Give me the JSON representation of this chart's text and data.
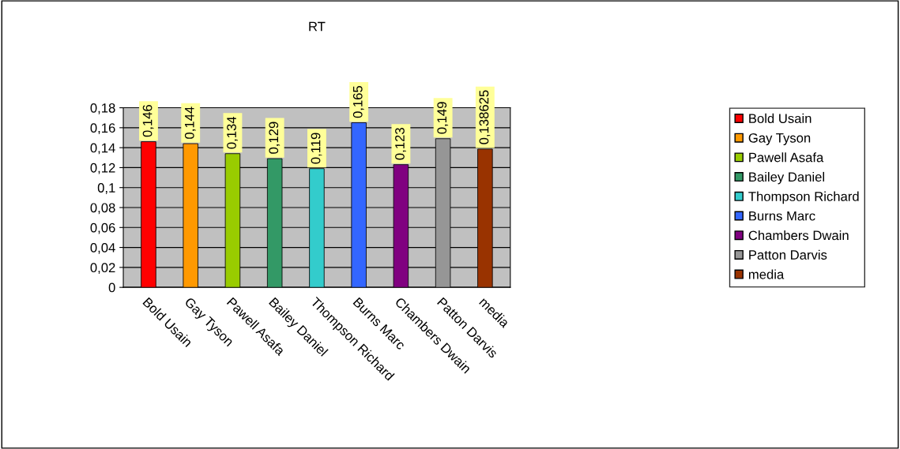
{
  "chart_data": {
    "type": "bar",
    "title": "RT",
    "categories": [
      "Bold Usain",
      "Gay Tyson",
      "Pawell Asafa",
      "Bailey Daniel",
      "Thompson Richard",
      "Burns Marc",
      "Chambers Dwain",
      "Patton Darvis",
      "media"
    ],
    "series": [
      {
        "name": "Bold Usain",
        "color": "#ff0000",
        "values": [
          0.146,
          null,
          null,
          null,
          null,
          null,
          null,
          null,
          null
        ],
        "value_labels": [
          "0,146",
          null,
          null,
          null,
          null,
          null,
          null,
          null,
          null
        ]
      },
      {
        "name": "Gay Tyson",
        "color": "#ff9900",
        "values": [
          null,
          0.144,
          null,
          null,
          null,
          null,
          null,
          null,
          null
        ],
        "value_labels": [
          null,
          "0,144",
          null,
          null,
          null,
          null,
          null,
          null,
          null
        ]
      },
      {
        "name": "Pawell Asafa",
        "color": "#99cc00",
        "values": [
          null,
          null,
          0.134,
          null,
          null,
          null,
          null,
          null,
          null
        ],
        "value_labels": [
          null,
          null,
          "0,134",
          null,
          null,
          null,
          null,
          null,
          null
        ]
      },
      {
        "name": "Bailey Daniel",
        "color": "#339966",
        "values": [
          null,
          null,
          null,
          0.129,
          null,
          null,
          null,
          null,
          null
        ],
        "value_labels": [
          null,
          null,
          null,
          "0,129",
          null,
          null,
          null,
          null,
          null
        ]
      },
      {
        "name": "Thompson Richard",
        "color": "#33cccc",
        "values": [
          null,
          null,
          null,
          null,
          0.119,
          null,
          null,
          null,
          null
        ],
        "value_labels": [
          null,
          null,
          null,
          null,
          "0,119",
          null,
          null,
          null,
          null
        ]
      },
      {
        "name": "Burns Marc",
        "color": "#3366ff",
        "values": [
          null,
          null,
          null,
          null,
          null,
          0.165,
          null,
          null,
          null
        ],
        "value_labels": [
          null,
          null,
          null,
          null,
          null,
          "0,165",
          null,
          null,
          null
        ]
      },
      {
        "name": "Chambers Dwain",
        "color": "#800080",
        "values": [
          null,
          null,
          null,
          null,
          null,
          null,
          0.123,
          null,
          null
        ],
        "value_labels": [
          null,
          null,
          null,
          null,
          null,
          null,
          "0,123",
          null,
          null
        ]
      },
      {
        "name": "Patton Darvis",
        "color": "#969696",
        "values": [
          null,
          null,
          null,
          null,
          null,
          null,
          null,
          0.149,
          null
        ],
        "value_labels": [
          null,
          null,
          null,
          null,
          null,
          null,
          null,
          "0,149",
          null
        ]
      },
      {
        "name": "media",
        "color": "#993300",
        "values": [
          null,
          null,
          null,
          null,
          null,
          null,
          null,
          null,
          0.138625
        ],
        "value_labels": [
          null,
          null,
          null,
          null,
          null,
          null,
          null,
          null,
          "0,138625"
        ]
      }
    ],
    "ylim": [
      0,
      0.18
    ],
    "yticks": [
      0,
      {
        "value": 0.02,
        "label": "0,02"
      },
      {
        "value": 0.04,
        "label": "0,04"
      },
      {
        "value": 0.06,
        "label": "0,06"
      },
      {
        "value": 0.08,
        "label": "0,08"
      },
      {
        "value": 0.1,
        "label": "0,1"
      },
      {
        "value": 0.12,
        "label": "0,12"
      },
      {
        "value": 0.14,
        "label": "0,14"
      },
      {
        "value": 0.16,
        "label": "0,16"
      },
      {
        "value": 0.18,
        "label": "0,18"
      }
    ],
    "grid": "y",
    "legend": "right"
  }
}
